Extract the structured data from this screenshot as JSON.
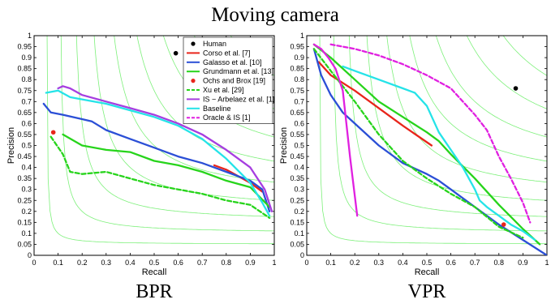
{
  "figure": {
    "title": "Moving camera"
  },
  "chart_data": [
    {
      "type": "line",
      "panel_label": "BPR",
      "xlabel": "Recall",
      "ylabel": "Precision",
      "xlim": [
        0,
        1
      ],
      "ylim": [
        0,
        1
      ],
      "xticks": [
        "0",
        "0.1",
        "0.2",
        "0.3",
        "0.4",
        "0.5",
        "0.6",
        "0.7",
        "0.8",
        "0.9",
        "1"
      ],
      "yticks": [
        "0",
        "0.05",
        "0.1",
        "0.15",
        "0.2",
        "0.25",
        "0.3",
        "0.35",
        "0.4",
        "0.45",
        "0.5",
        "0.55",
        "0.6",
        "0.65",
        "0.7",
        "0.75",
        "0.8",
        "0.85",
        "0.9",
        "0.95",
        "1"
      ],
      "grid": "iso-F curves",
      "legend_position": "top-right",
      "series": [
        {
          "name": "Corso et al. [7]",
          "color": "#e8251b",
          "style": "line",
          "x": [
            0.75,
            0.8,
            0.85,
            0.9,
            0.95
          ],
          "y": [
            0.41,
            0.39,
            0.36,
            0.33,
            0.29
          ]
        },
        {
          "name": "Galasso et al. [10]",
          "color": "#2b4fd6",
          "style": "line",
          "x": [
            0.04,
            0.07,
            0.12,
            0.2,
            0.24,
            0.3,
            0.4,
            0.5,
            0.6,
            0.7,
            0.8,
            0.9,
            0.95,
            0.98
          ],
          "y": [
            0.69,
            0.65,
            0.64,
            0.62,
            0.61,
            0.57,
            0.53,
            0.49,
            0.45,
            0.42,
            0.38,
            0.34,
            0.3,
            0.2
          ]
        },
        {
          "name": "Grundmann et al. [13]",
          "color": "#27d41b",
          "style": "line",
          "x": [
            0.12,
            0.2,
            0.3,
            0.4,
            0.5,
            0.6,
            0.7,
            0.8,
            0.9,
            0.98
          ],
          "y": [
            0.55,
            0.5,
            0.48,
            0.47,
            0.43,
            0.41,
            0.38,
            0.34,
            0.31,
            0.22
          ]
        },
        {
          "name": "Ochs and Brox [19]",
          "color": "#e8251b",
          "style": "point",
          "x": [
            0.08
          ],
          "y": [
            0.56
          ]
        },
        {
          "name": "Xu  et al. [29]",
          "color": "#27d41b",
          "style": "dashed",
          "x": [
            0.07,
            0.12,
            0.15,
            0.2,
            0.3,
            0.4,
            0.5,
            0.6,
            0.7,
            0.8,
            0.9,
            0.98
          ],
          "y": [
            0.54,
            0.46,
            0.38,
            0.37,
            0.38,
            0.35,
            0.32,
            0.3,
            0.28,
            0.25,
            0.23,
            0.17
          ]
        },
        {
          "name": "IS − Arbelaez et al. [1]",
          "color": "#a63ee0",
          "style": "line",
          "x": [
            0.1,
            0.12,
            0.15,
            0.2,
            0.3,
            0.4,
            0.5,
            0.6,
            0.7,
            0.8,
            0.9,
            0.96,
            0.99
          ],
          "y": [
            0.76,
            0.77,
            0.76,
            0.73,
            0.7,
            0.67,
            0.64,
            0.6,
            0.55,
            0.48,
            0.4,
            0.3,
            0.2
          ]
        },
        {
          "name": "Baseline",
          "color": "#25e3e8",
          "style": "line",
          "x": [
            0.05,
            0.1,
            0.15,
            0.2,
            0.3,
            0.4,
            0.5,
            0.6,
            0.7,
            0.8,
            0.9,
            0.95,
            0.98
          ],
          "y": [
            0.74,
            0.75,
            0.72,
            0.71,
            0.69,
            0.66,
            0.63,
            0.59,
            0.53,
            0.44,
            0.33,
            0.24,
            0.18
          ]
        },
        {
          "name": "Human",
          "color": "#000000",
          "style": "point",
          "x": [
            0.59
          ],
          "y": [
            0.92
          ]
        }
      ]
    },
    {
      "type": "line",
      "panel_label": "VPR",
      "xlabel": "Recall",
      "ylabel": "Precision",
      "xlim": [
        0,
        1
      ],
      "ylim": [
        0,
        1
      ],
      "xticks": [
        "0",
        "0.1",
        "0.2",
        "0.3",
        "0.4",
        "0.5",
        "0.6",
        "0.7",
        "0.8",
        "0.9",
        "1"
      ],
      "yticks": [
        "0",
        "0.05",
        "0.1",
        "0.15",
        "0.2",
        "0.25",
        "0.3",
        "0.35",
        "0.4",
        "0.45",
        "0.5",
        "0.55",
        "0.6",
        "0.65",
        "0.7",
        "0.75",
        "0.8",
        "0.85",
        "0.9",
        "0.95",
        "1"
      ],
      "grid": "iso-F curves",
      "series": [
        {
          "name": "Corso et al. [7]",
          "color": "#e8251b",
          "style": "line",
          "x": [
            0.05,
            0.1,
            0.2,
            0.3,
            0.4,
            0.52
          ],
          "y": [
            0.88,
            0.82,
            0.75,
            0.67,
            0.59,
            0.5
          ]
        },
        {
          "name": "Galasso et al. [10]",
          "color": "#2b4fd6",
          "style": "line",
          "x": [
            0.03,
            0.06,
            0.1,
            0.15,
            0.2,
            0.3,
            0.4,
            0.5,
            0.55,
            0.6,
            0.7,
            0.8,
            0.9,
            1.0
          ],
          "y": [
            0.94,
            0.82,
            0.73,
            0.65,
            0.6,
            0.5,
            0.42,
            0.37,
            0.34,
            0.3,
            0.22,
            0.14,
            0.07,
            0.0
          ]
        },
        {
          "name": "Grundmann et al. [13]",
          "color": "#27d41b",
          "style": "line",
          "x": [
            0.03,
            0.1,
            0.2,
            0.3,
            0.4,
            0.5,
            0.55,
            0.6,
            0.7,
            0.8,
            0.9,
            0.97
          ],
          "y": [
            0.96,
            0.9,
            0.8,
            0.7,
            0.63,
            0.56,
            0.52,
            0.46,
            0.35,
            0.23,
            0.12,
            0.05
          ]
        },
        {
          "name": "Ochs and Brox [19]",
          "color": "#e8251b",
          "style": "point",
          "x": [
            0.82
          ],
          "y": [
            0.14
          ]
        },
        {
          "name": "Xu  et al. [29]",
          "color": "#27d41b",
          "style": "dashed",
          "x": [
            0.03,
            0.1,
            0.2,
            0.3,
            0.4,
            0.5,
            0.6,
            0.7,
            0.8,
            0.9
          ],
          "y": [
            0.94,
            0.84,
            0.7,
            0.55,
            0.43,
            0.35,
            0.28,
            0.22,
            0.13,
            0.08
          ]
        },
        {
          "name": "IS − Arbelaez et al. [1]",
          "color": "#e020e0",
          "style": "line",
          "x": [
            0.03,
            0.06,
            0.09,
            0.12,
            0.15,
            0.18,
            0.21
          ],
          "y": [
            0.96,
            0.94,
            0.9,
            0.85,
            0.75,
            0.45,
            0.18
          ]
        },
        {
          "name": "Baseline",
          "color": "#25e3e8",
          "style": "line",
          "x": [
            0.15,
            0.2,
            0.3,
            0.4,
            0.45,
            0.5,
            0.55,
            0.6,
            0.65,
            0.7,
            0.72,
            0.75,
            0.8,
            0.85,
            0.9,
            0.95
          ],
          "y": [
            0.86,
            0.84,
            0.8,
            0.76,
            0.74,
            0.68,
            0.56,
            0.48,
            0.4,
            0.3,
            0.25,
            0.22,
            0.18,
            0.14,
            0.11,
            0.07
          ]
        },
        {
          "name": "Oracle & IS [1]",
          "color": "#e020e0",
          "style": "dashed",
          "x": [
            0.1,
            0.2,
            0.3,
            0.4,
            0.5,
            0.6,
            0.7,
            0.75,
            0.8,
            0.85,
            0.9,
            0.93
          ],
          "y": [
            0.96,
            0.94,
            0.91,
            0.87,
            0.82,
            0.76,
            0.64,
            0.57,
            0.45,
            0.35,
            0.24,
            0.15
          ]
        },
        {
          "name": "Human",
          "color": "#000000",
          "style": "point",
          "x": [
            0.87
          ],
          "y": [
            0.76
          ]
        }
      ]
    }
  ],
  "legend": {
    "entries": [
      {
        "label": "Human",
        "color": "#000000",
        "marker": "dot"
      },
      {
        "label": "Corso et al. [7]",
        "color": "#e8251b",
        "marker": "line"
      },
      {
        "label": "Galasso et al. [10]",
        "color": "#2b4fd6",
        "marker": "line"
      },
      {
        "label": "Grundmann et al. [13]",
        "color": "#27d41b",
        "marker": "line"
      },
      {
        "label": "Ochs and Brox [19]",
        "color": "#e8251b",
        "marker": "dot"
      },
      {
        "label": "Xu  et al. [29]",
        "color": "#27d41b",
        "marker": "dashed"
      },
      {
        "label": "IS − Arbelaez et al. [1]",
        "color": "#a63ee0",
        "marker": "line"
      },
      {
        "label": "Baseline",
        "color": "#25e3e8",
        "marker": "line"
      },
      {
        "label": "Oracle & IS [1]",
        "color": "#e020e0",
        "marker": "dashed"
      }
    ]
  }
}
